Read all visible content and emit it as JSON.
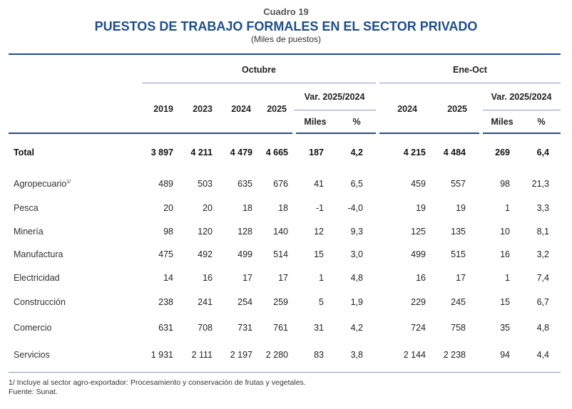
{
  "header": {
    "table_number": "Cuadro 19",
    "title": "PUESTOS DE TRABAJO FORMALES EN EL SECTOR PRIVADO",
    "unit": "(Miles de puestos)"
  },
  "columns": {
    "group_october": "Octubre",
    "group_jan_oct": "Ene-Oct",
    "var_label": "Var. 2025/2024",
    "october_years": [
      "2019",
      "2023",
      "2024",
      "2025"
    ],
    "jan_oct_years": [
      "2024",
      "2025"
    ],
    "var_sub": [
      "Miles",
      "%"
    ]
  },
  "rows": [
    {
      "label": "Total",
      "sup": "",
      "bold": true,
      "values": [
        "3 897",
        "4 211",
        "4 479",
        "4 665",
        "187",
        "4,2",
        "4 215",
        "4 484",
        "269",
        "6,4"
      ]
    },
    {
      "label": "Agropecuario",
      "sup": "1/",
      "bold": false,
      "values": [
        "489",
        "503",
        "635",
        "676",
        "41",
        "6,5",
        "459",
        "557",
        "98",
        "21,3"
      ]
    },
    {
      "label": "Pesca",
      "sup": "",
      "bold": false,
      "values": [
        "20",
        "20",
        "18",
        "18",
        "-1",
        "-4,0",
        "19",
        "19",
        "1",
        "3,3"
      ]
    },
    {
      "label": "Minería",
      "sup": "",
      "bold": false,
      "values": [
        "98",
        "120",
        "128",
        "140",
        "12",
        "9,3",
        "125",
        "135",
        "10",
        "8,1"
      ]
    },
    {
      "label": "Manufactura",
      "sup": "",
      "bold": false,
      "values": [
        "475",
        "492",
        "499",
        "514",
        "15",
        "3,0",
        "499",
        "515",
        "16",
        "3,2"
      ]
    },
    {
      "label": "Electricidad",
      "sup": "",
      "bold": false,
      "values": [
        "14",
        "16",
        "17",
        "17",
        "1",
        "4,8",
        "16",
        "17",
        "1",
        "7,4"
      ]
    },
    {
      "label": "Construcción",
      "sup": "",
      "bold": false,
      "values": [
        "238",
        "241",
        "254",
        "259",
        "5",
        "1,9",
        "229",
        "245",
        "15",
        "6,7"
      ]
    },
    {
      "label": "Comercio",
      "sup": "",
      "bold": false,
      "values": [
        "631",
        "708",
        "731",
        "761",
        "31",
        "4,2",
        "724",
        "758",
        "35",
        "4,8"
      ]
    },
    {
      "label": "Servicios",
      "sup": "",
      "bold": false,
      "values": [
        "1 931",
        "2 111",
        "2 197",
        "2 280",
        "83",
        "3,8",
        "2 144",
        "2 238",
        "94",
        "4,4"
      ]
    }
  ],
  "footnotes": {
    "note1": "1/ Incluye al sector agro-exportador: Procesamiento y conservación de frutas y vegetales.",
    "source": "Fuente: Sunat."
  },
  "colors": {
    "title": "#1f4e8c",
    "rule": "#1f4e8c",
    "subrule": "#8d98c4"
  }
}
